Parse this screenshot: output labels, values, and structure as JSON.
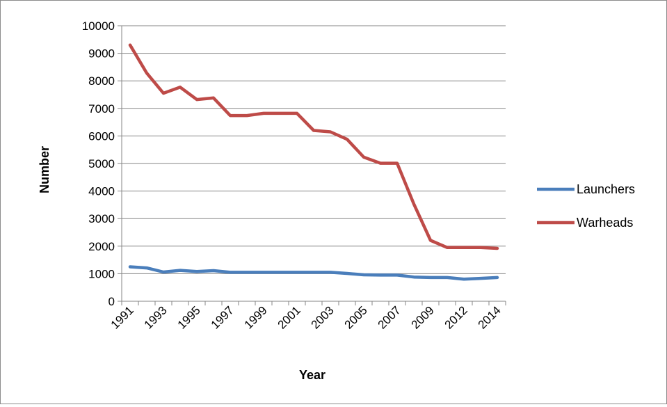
{
  "chart_data": {
    "type": "line",
    "title": "",
    "xlabel": "Year",
    "ylabel": "Number",
    "ylim": [
      0,
      10000
    ],
    "yticks": [
      "0",
      "1000",
      "2000",
      "3000",
      "4000",
      "5000",
      "6000",
      "7000",
      "8000",
      "9000",
      "10000"
    ],
    "x": [
      "1991",
      "1992",
      "1993",
      "1994",
      "1995",
      "1996",
      "1997",
      "1998",
      "1999",
      "2000",
      "2001",
      "2002",
      "2003",
      "2004",
      "2005",
      "2006",
      "2007",
      "2008",
      "2009",
      "2010",
      "2012",
      "2013",
      "2014"
    ],
    "x_tick_labels": [
      "1991",
      "1993",
      "1995",
      "1997",
      "1999",
      "2001",
      "2003",
      "2005",
      "2007",
      "2009",
      "2012",
      "2014"
    ],
    "grid": "horizontal",
    "legend_position": "right",
    "series": [
      {
        "name": "Launchers",
        "color": "#4a7ebb",
        "values": [
          1250,
          1210,
          1060,
          1120,
          1080,
          1110,
          1050,
          1050,
          1050,
          1050,
          1050,
          1050,
          1050,
          1010,
          960,
          950,
          950,
          880,
          860,
          860,
          800,
          830,
          860
        ]
      },
      {
        "name": "Warheads",
        "color": "#be4b48",
        "values": [
          9300,
          8280,
          7550,
          7770,
          7320,
          7380,
          6740,
          6740,
          6820,
          6820,
          6820,
          6200,
          6150,
          5880,
          5230,
          5010,
          5010,
          3530,
          2210,
          1950,
          1950,
          1950,
          1920
        ]
      }
    ]
  }
}
